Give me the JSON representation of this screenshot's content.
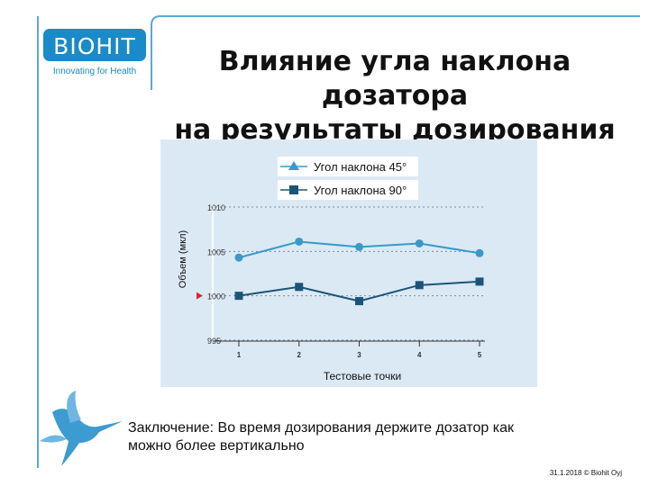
{
  "logo": {
    "brand": "BIOHIT",
    "tagline": "Innovating for Health"
  },
  "slide": {
    "title_line1": "Влияние угла наклона дозатора",
    "title_line2": "на результаты дозирования",
    "conclusion_line1": "Заключение: Во время дозирования держите дозатор как",
    "conclusion_line2": "можно более вертикально",
    "footer": "31.1.2018 © Biohit Oyj"
  },
  "colors": {
    "brand_blue": "#1a8ac8",
    "chart_bg": "#dbe9f5",
    "series_45": "#3a99c8",
    "series_90": "#1b5478",
    "reference_marker": "#d9262c"
  },
  "chart_data": {
    "type": "line",
    "x": [
      1,
      2,
      3,
      4,
      5
    ],
    "series": [
      {
        "name": "Угол наклона 45°",
        "marker": "triangle",
        "values": [
          1004.3,
          1006.1,
          1005.5,
          1005.9,
          1004.8
        ]
      },
      {
        "name": "Угол наклона 90°",
        "marker": "square",
        "values": [
          1000.0,
          1001.0,
          999.4,
          1001.2,
          1001.6
        ]
      }
    ],
    "xlabel": "Тестовые точки",
    "ylabel": "Объем (мкл)",
    "xticks": [
      "1",
      "2",
      "3",
      "4",
      "5"
    ],
    "yticks": [
      "995",
      "1000",
      "1005",
      "1010"
    ],
    "ylim": [
      995,
      1010
    ],
    "reference_value": 1000,
    "grid": "horizontal dashed",
    "legend_position": "top"
  }
}
